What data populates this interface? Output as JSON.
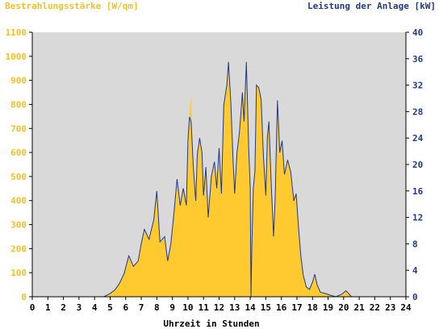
{
  "header": {
    "left_label": "Bestrahlungsstärke [W/qm]",
    "right_label": "Leistung der Anlage [kW]"
  },
  "chart_data": {
    "type": "area",
    "title": "",
    "xlabel": "Uhrzeit in Stunden",
    "ylabel_left": "Bestrahlungsstärke [W/qm]",
    "ylabel_right": "Leistung der Anlage [kW]",
    "xlim": [
      0,
      24
    ],
    "ylim_left": [
      0,
      1100
    ],
    "ylim_right": [
      0,
      40
    ],
    "x_ticks": [
      "0",
      "1",
      "2",
      "3",
      "4",
      "5",
      "6",
      "7",
      "8",
      "9",
      "10",
      "11",
      "12",
      "13",
      "14",
      "15",
      "16",
      "17",
      "18",
      "19",
      "20",
      "21",
      "22",
      "23",
      "24"
    ],
    "y_left_ticks": [
      "0",
      "100",
      "200",
      "300",
      "400",
      "500",
      "600",
      "700",
      "800",
      "900",
      "1000",
      "1100"
    ],
    "y_right_ticks": [
      "0",
      "4",
      "8",
      "12",
      "16",
      "20",
      "24",
      "28",
      "32",
      "36",
      "40"
    ],
    "grid": false,
    "colors": {
      "irradiance": "#ffc930",
      "power": "#1f3a8a",
      "plot_background": "#d9d9d9",
      "left_axis_text": "#f2c021",
      "right_axis_text": "#1f3a8a"
    },
    "series": [
      {
        "name": "Bestrahlungsstärke [W/qm]",
        "axis": "left",
        "style": "filled-area",
        "points": [
          [
            4.6,
            0
          ],
          [
            5.0,
            15
          ],
          [
            5.3,
            30
          ],
          [
            5.6,
            60
          ],
          [
            5.9,
            100
          ],
          [
            6.2,
            170
          ],
          [
            6.5,
            130
          ],
          [
            6.8,
            150
          ],
          [
            7.0,
            220
          ],
          [
            7.2,
            280
          ],
          [
            7.5,
            240
          ],
          [
            7.8,
            320
          ],
          [
            8.0,
            440
          ],
          [
            8.2,
            230
          ],
          [
            8.5,
            250
          ],
          [
            8.7,
            150
          ],
          [
            8.9,
            220
          ],
          [
            9.1,
            350
          ],
          [
            9.3,
            490
          ],
          [
            9.5,
            380
          ],
          [
            9.7,
            450
          ],
          [
            9.9,
            380
          ],
          [
            10.0,
            650
          ],
          [
            10.1,
            760
          ],
          [
            10.2,
            830
          ],
          [
            10.35,
            530
          ],
          [
            10.5,
            400
          ],
          [
            10.6,
            590
          ],
          [
            10.75,
            660
          ],
          [
            10.9,
            600
          ],
          [
            11.0,
            420
          ],
          [
            11.15,
            540
          ],
          [
            11.3,
            330
          ],
          [
            11.5,
            500
          ],
          [
            11.7,
            560
          ],
          [
            11.85,
            450
          ],
          [
            12.0,
            620
          ],
          [
            12.15,
            430
          ],
          [
            12.3,
            800
          ],
          [
            12.5,
            880
          ],
          [
            12.6,
            1000
          ],
          [
            12.75,
            820
          ],
          [
            12.9,
            560
          ],
          [
            13.0,
            430
          ],
          [
            13.15,
            600
          ],
          [
            13.3,
            680
          ],
          [
            13.5,
            850
          ],
          [
            13.6,
            730
          ],
          [
            13.75,
            1000
          ],
          [
            13.9,
            620
          ],
          [
            14.0,
            450
          ],
          [
            14.05,
            0
          ],
          [
            14.1,
            200
          ],
          [
            14.2,
            450
          ],
          [
            14.3,
            520
          ],
          [
            14.4,
            880
          ],
          [
            14.55,
            870
          ],
          [
            14.7,
            820
          ],
          [
            14.85,
            580
          ],
          [
            15.0,
            420
          ],
          [
            15.1,
            660
          ],
          [
            15.2,
            730
          ],
          [
            15.35,
            470
          ],
          [
            15.5,
            250
          ],
          [
            15.6,
            400
          ],
          [
            15.75,
            780
          ],
          [
            15.9,
            600
          ],
          [
            16.05,
            650
          ],
          [
            16.2,
            510
          ],
          [
            16.4,
            570
          ],
          [
            16.6,
            520
          ],
          [
            16.8,
            400
          ],
          [
            16.95,
            430
          ],
          [
            17.1,
            290
          ],
          [
            17.25,
            170
          ],
          [
            17.4,
            90
          ],
          [
            17.6,
            40
          ],
          [
            17.8,
            30
          ],
          [
            18.0,
            60
          ],
          [
            18.15,
            95
          ],
          [
            18.3,
            50
          ],
          [
            18.5,
            20
          ],
          [
            18.8,
            15
          ],
          [
            19.2,
            5
          ],
          [
            19.5,
            0
          ],
          [
            19.9,
            12
          ],
          [
            20.15,
            25
          ],
          [
            20.35,
            10
          ],
          [
            20.5,
            0
          ]
        ]
      },
      {
        "name": "Leistung der Anlage [kW]",
        "axis": "right",
        "style": "line",
        "points": [
          [
            4.6,
            0
          ],
          [
            5.0,
            0.5
          ],
          [
            5.3,
            1.0
          ],
          [
            5.6,
            2.0
          ],
          [
            5.9,
            3.5
          ],
          [
            6.2,
            6.2
          ],
          [
            6.5,
            4.6
          ],
          [
            6.8,
            5.4
          ],
          [
            7.0,
            8.0
          ],
          [
            7.2,
            10.2
          ],
          [
            7.5,
            8.7
          ],
          [
            7.8,
            11.6
          ],
          [
            8.0,
            16.0
          ],
          [
            8.2,
            8.3
          ],
          [
            8.5,
            9.1
          ],
          [
            8.7,
            5.4
          ],
          [
            8.9,
            8.0
          ],
          [
            9.1,
            12.7
          ],
          [
            9.3,
            17.8
          ],
          [
            9.5,
            13.8
          ],
          [
            9.7,
            16.4
          ],
          [
            9.9,
            13.8
          ],
          [
            10.0,
            23.6
          ],
          [
            10.1,
            27.2
          ],
          [
            10.2,
            26.5
          ],
          [
            10.35,
            19.3
          ],
          [
            10.5,
            14.5
          ],
          [
            10.6,
            21.5
          ],
          [
            10.75,
            24.0
          ],
          [
            10.9,
            21.8
          ],
          [
            11.0,
            15.3
          ],
          [
            11.15,
            19.6
          ],
          [
            11.3,
            12.0
          ],
          [
            11.5,
            18.2
          ],
          [
            11.7,
            20.4
          ],
          [
            11.85,
            16.4
          ],
          [
            12.0,
            22.5
          ],
          [
            12.15,
            15.6
          ],
          [
            12.3,
            29.0
          ],
          [
            12.5,
            32.0
          ],
          [
            12.6,
            35.5
          ],
          [
            12.75,
            29.5
          ],
          [
            12.9,
            20.4
          ],
          [
            13.0,
            15.6
          ],
          [
            13.15,
            21.8
          ],
          [
            13.3,
            24.7
          ],
          [
            13.5,
            30.9
          ],
          [
            13.6,
            26.5
          ],
          [
            13.75,
            35.5
          ],
          [
            13.9,
            22.5
          ],
          [
            14.0,
            16.4
          ],
          [
            14.05,
            0
          ],
          [
            14.1,
            7.3
          ],
          [
            14.2,
            16.4
          ],
          [
            14.3,
            18.9
          ],
          [
            14.4,
            32.0
          ],
          [
            14.55,
            31.6
          ],
          [
            14.7,
            29.8
          ],
          [
            14.85,
            21.1
          ],
          [
            15.0,
            15.3
          ],
          [
            15.1,
            24.0
          ],
          [
            15.2,
            26.5
          ],
          [
            15.35,
            17.1
          ],
          [
            15.5,
            9.1
          ],
          [
            15.6,
            14.5
          ],
          [
            15.75,
            29.7
          ],
          [
            15.9,
            21.8
          ],
          [
            16.05,
            23.6
          ],
          [
            16.2,
            18.5
          ],
          [
            16.4,
            20.7
          ],
          [
            16.6,
            18.9
          ],
          [
            16.8,
            14.5
          ],
          [
            16.95,
            15.6
          ],
          [
            17.1,
            10.5
          ],
          [
            17.25,
            6.2
          ],
          [
            17.4,
            3.3
          ],
          [
            17.6,
            1.5
          ],
          [
            17.8,
            1.1
          ],
          [
            18.0,
            2.2
          ],
          [
            18.15,
            3.4
          ],
          [
            18.3,
            1.8
          ],
          [
            18.5,
            0.7
          ],
          [
            18.8,
            0.5
          ],
          [
            19.2,
            0.2
          ],
          [
            19.5,
            0
          ],
          [
            19.9,
            0.4
          ],
          [
            20.15,
            0.9
          ],
          [
            20.35,
            0.4
          ],
          [
            20.5,
            0
          ]
        ]
      }
    ]
  }
}
